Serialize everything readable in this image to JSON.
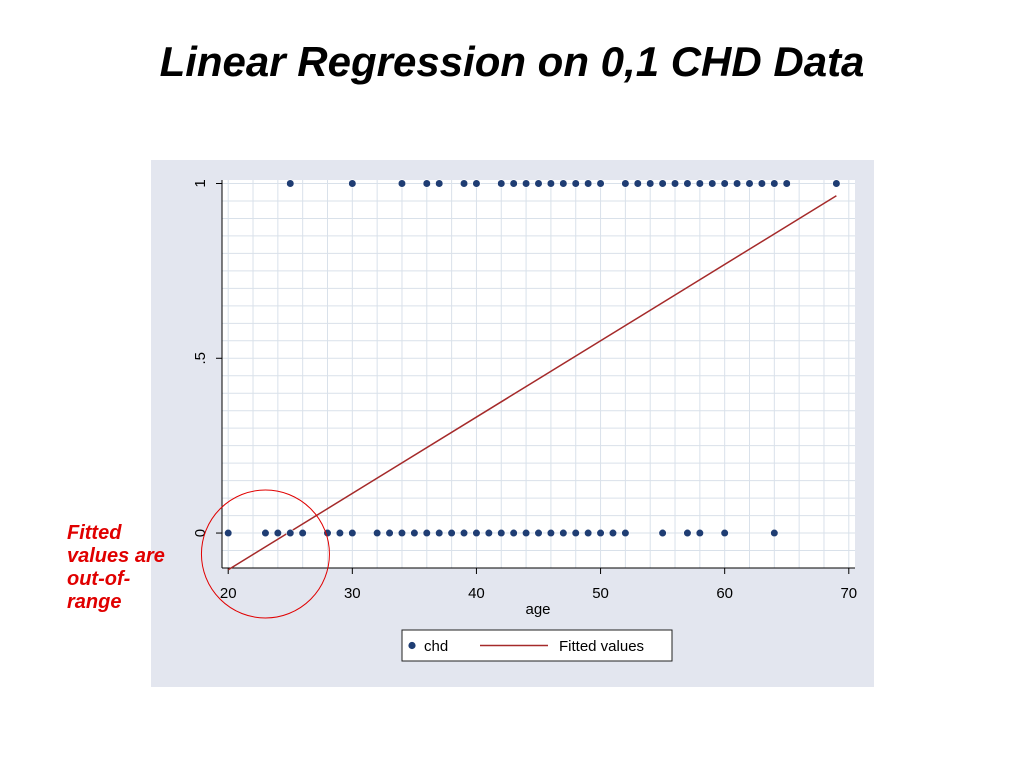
{
  "slide": {
    "title": "Linear Regression on 0,1 CHD Data",
    "note": [
      "Fitted",
      "values are",
      "out-of-",
      "range"
    ]
  },
  "colors": {
    "panel_background": "#e3e6ef",
    "plot_background": "#ffffff",
    "grid": "#d9e1ea",
    "points": "#1f3d73",
    "fitted_line": "#a52a2a",
    "highlight_circle": "#e00000",
    "note_text": "#e00000"
  },
  "chart_data": {
    "type": "scatter",
    "title": "",
    "xlabel": "age",
    "ylabel": "",
    "xlim": [
      19.5,
      70.5
    ],
    "ylim": [
      -0.1,
      1.01
    ],
    "x_ticks": [
      20,
      30,
      40,
      50,
      60,
      70
    ],
    "x_tick_labels": [
      "20",
      "30",
      "40",
      "50",
      "60",
      "70"
    ],
    "y_ticks": [
      0,
      0.5,
      1
    ],
    "y_tick_labels": [
      "0",
      ".5",
      "1"
    ],
    "grid": true,
    "legend_position": "bottom",
    "series": [
      {
        "name": "chd",
        "kind": "scatter",
        "points": [
          [
            20,
            0
          ],
          [
            23,
            0
          ],
          [
            24,
            0
          ],
          [
            25,
            0
          ],
          [
            26,
            0
          ],
          [
            28,
            0
          ],
          [
            29,
            0
          ],
          [
            30,
            0
          ],
          [
            32,
            0
          ],
          [
            33,
            0
          ],
          [
            34,
            0
          ],
          [
            35,
            0
          ],
          [
            36,
            0
          ],
          [
            37,
            0
          ],
          [
            38,
            0
          ],
          [
            39,
            0
          ],
          [
            40,
            0
          ],
          [
            41,
            0
          ],
          [
            42,
            0
          ],
          [
            43,
            0
          ],
          [
            44,
            0
          ],
          [
            45,
            0
          ],
          [
            46,
            0
          ],
          [
            47,
            0
          ],
          [
            48,
            0
          ],
          [
            49,
            0
          ],
          [
            50,
            0
          ],
          [
            51,
            0
          ],
          [
            52,
            0
          ],
          [
            55,
            0
          ],
          [
            57,
            0
          ],
          [
            58,
            0
          ],
          [
            60,
            0
          ],
          [
            64,
            0
          ],
          [
            25,
            1
          ],
          [
            30,
            1
          ],
          [
            34,
            1
          ],
          [
            36,
            1
          ],
          [
            37,
            1
          ],
          [
            39,
            1
          ],
          [
            40,
            1
          ],
          [
            42,
            1
          ],
          [
            43,
            1
          ],
          [
            44,
            1
          ],
          [
            45,
            1
          ],
          [
            46,
            1
          ],
          [
            47,
            1
          ],
          [
            48,
            1
          ],
          [
            49,
            1
          ],
          [
            50,
            1
          ],
          [
            52,
            1
          ],
          [
            53,
            1
          ],
          [
            54,
            1
          ],
          [
            55,
            1
          ],
          [
            56,
            1
          ],
          [
            57,
            1
          ],
          [
            58,
            1
          ],
          [
            59,
            1
          ],
          [
            60,
            1
          ],
          [
            61,
            1
          ],
          [
            62,
            1
          ],
          [
            63,
            1
          ],
          [
            64,
            1
          ],
          [
            65,
            1
          ],
          [
            69,
            1
          ]
        ]
      },
      {
        "name": "Fitted values",
        "kind": "line",
        "points": [
          [
            20,
            -0.105
          ],
          [
            69,
            0.965
          ]
        ]
      }
    ],
    "annotation": {
      "type": "circle",
      "center": [
        23,
        -0.06
      ]
    }
  }
}
